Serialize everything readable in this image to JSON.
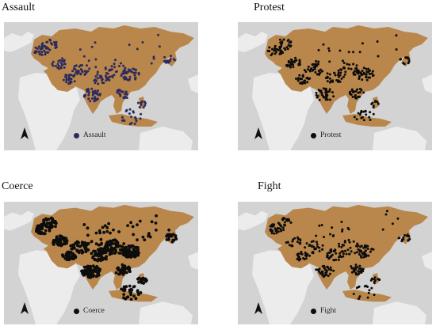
{
  "colors": {
    "ocean": "#d3d3d3",
    "land_other": "#ececec",
    "land_eurasia": "#b9874b",
    "dot_assault": "#2b2b5e",
    "dot_default": "#0d0d0d"
  },
  "panels": [
    {
      "id": "assault",
      "title": "Assault",
      "legend_label": "Assault",
      "dot_color": "#2b2b5e",
      "density": "medium"
    },
    {
      "id": "protest",
      "title": "Protest",
      "legend_label": "Protest",
      "dot_color": "#0d0d0d",
      "density": "medium"
    },
    {
      "id": "coerce",
      "title": "Coerce",
      "legend_label": "Coerce",
      "dot_color": "#0d0d0d",
      "density": "high"
    },
    {
      "id": "fight",
      "title": "Fight",
      "legend_label": "Fight",
      "dot_color": "#0d0d0d",
      "density": "medium"
    }
  ],
  "icons": {
    "north_arrow": "north-arrow-icon"
  }
}
